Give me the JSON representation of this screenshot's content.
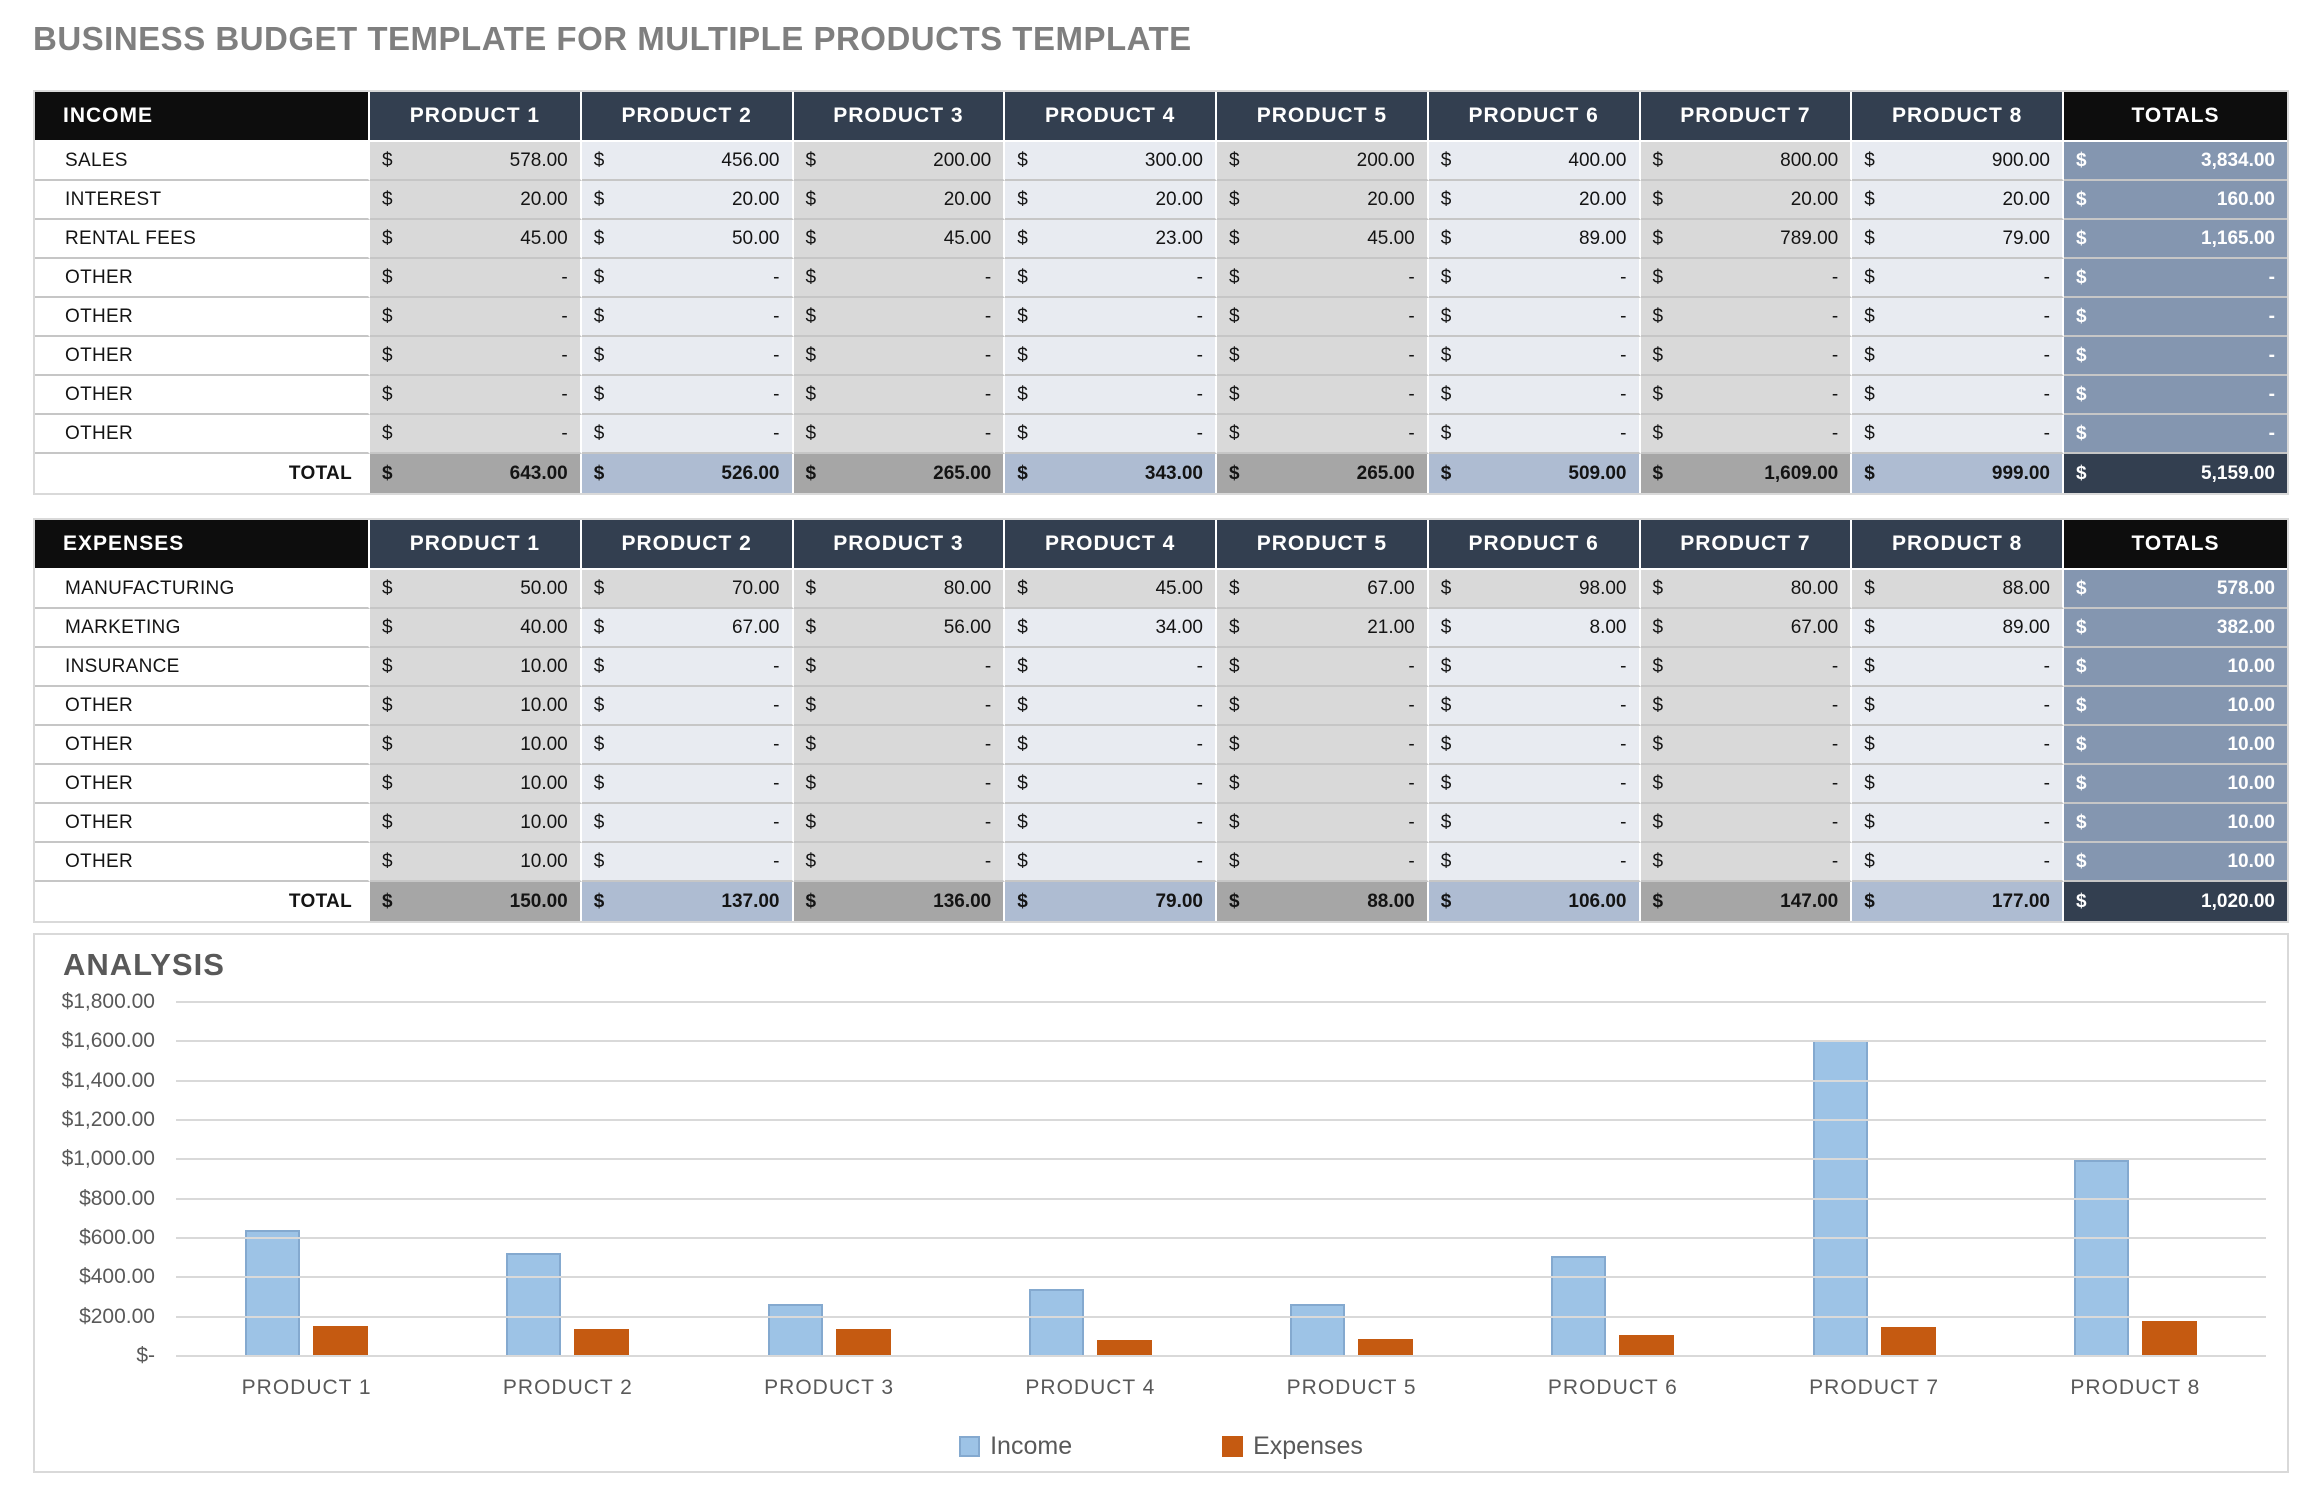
{
  "page_title": "BUSINESS BUDGET TEMPLATE FOR MULTIPLE PRODUCTS TEMPLATE",
  "currency_symbol": "$",
  "colors": {
    "title_gray": "#7f7f7f",
    "header_black": "#0d0d0d",
    "header_navy": "#333f50",
    "column_gray": "#d9d9d9",
    "column_blue": "#e8ebf1",
    "totals_column_blue": "#8496b0",
    "total_row_gray": "#a6a6a6",
    "total_row_blue": "#aebcd2",
    "grand_total_navy": "#333f50",
    "income_bar": "#9dc3e6",
    "expenses_bar": "#c55a11"
  },
  "income_table": {
    "label_header": "INCOME",
    "product_headers": [
      "PRODUCT 1",
      "PRODUCT 2",
      "PRODUCT 3",
      "PRODUCT 4",
      "PRODUCT 5",
      "PRODUCT 6",
      "PRODUCT 7",
      "PRODUCT 8"
    ],
    "totals_header": "TOTALS",
    "rows": [
      {
        "label": "SALES",
        "values": [
          "578.00",
          "456.00",
          "200.00",
          "300.00",
          "200.00",
          "400.00",
          "800.00",
          "900.00"
        ],
        "total": "3,834.00",
        "uniform_fill": false
      },
      {
        "label": "INTEREST",
        "values": [
          "20.00",
          "20.00",
          "20.00",
          "20.00",
          "20.00",
          "20.00",
          "20.00",
          "20.00"
        ],
        "total": "160.00",
        "uniform_fill": false
      },
      {
        "label": "RENTAL FEES",
        "values": [
          "45.00",
          "50.00",
          "45.00",
          "23.00",
          "45.00",
          "89.00",
          "789.00",
          "79.00"
        ],
        "total": "1,165.00",
        "uniform_fill": false
      },
      {
        "label": "OTHER",
        "values": [
          "-",
          "-",
          "-",
          "-",
          "-",
          "-",
          "-",
          "-"
        ],
        "total": "-",
        "uniform_fill": false
      },
      {
        "label": "OTHER",
        "values": [
          "-",
          "-",
          "-",
          "-",
          "-",
          "-",
          "-",
          "-"
        ],
        "total": "-",
        "uniform_fill": false
      },
      {
        "label": "OTHER",
        "values": [
          "-",
          "-",
          "-",
          "-",
          "-",
          "-",
          "-",
          "-"
        ],
        "total": "-",
        "uniform_fill": false
      },
      {
        "label": "OTHER",
        "values": [
          "-",
          "-",
          "-",
          "-",
          "-",
          "-",
          "-",
          "-"
        ],
        "total": "-",
        "uniform_fill": false
      },
      {
        "label": "OTHER",
        "values": [
          "-",
          "-",
          "-",
          "-",
          "-",
          "-",
          "-",
          "-"
        ],
        "total": "-",
        "uniform_fill": false
      }
    ],
    "total_row": {
      "label": "TOTAL",
      "values": [
        "643.00",
        "526.00",
        "265.00",
        "343.00",
        "265.00",
        "509.00",
        "1,609.00",
        "999.00"
      ],
      "total": "5,159.00"
    }
  },
  "expenses_table": {
    "label_header": "EXPENSES",
    "product_headers": [
      "PRODUCT 1",
      "PRODUCT 2",
      "PRODUCT 3",
      "PRODUCT 4",
      "PRODUCT 5",
      "PRODUCT 6",
      "PRODUCT 7",
      "PRODUCT 8"
    ],
    "totals_header": "TOTALS",
    "rows": [
      {
        "label": "MANUFACTURING",
        "values": [
          "50.00",
          "70.00",
          "80.00",
          "45.00",
          "67.00",
          "98.00",
          "80.00",
          "88.00"
        ],
        "total": "578.00",
        "uniform_fill": true
      },
      {
        "label": "MARKETING",
        "values": [
          "40.00",
          "67.00",
          "56.00",
          "34.00",
          "21.00",
          "8.00",
          "67.00",
          "89.00"
        ],
        "total": "382.00",
        "uniform_fill": false
      },
      {
        "label": "INSURANCE",
        "values": [
          "10.00",
          "-",
          "-",
          "-",
          "-",
          "-",
          "-",
          "-"
        ],
        "total": "10.00",
        "uniform_fill": false
      },
      {
        "label": "OTHER",
        "values": [
          "10.00",
          "-",
          "-",
          "-",
          "-",
          "-",
          "-",
          "-"
        ],
        "total": "10.00",
        "uniform_fill": false
      },
      {
        "label": "OTHER",
        "values": [
          "10.00",
          "-",
          "-",
          "-",
          "-",
          "-",
          "-",
          "-"
        ],
        "total": "10.00",
        "uniform_fill": false
      },
      {
        "label": "OTHER",
        "values": [
          "10.00",
          "-",
          "-",
          "-",
          "-",
          "-",
          "-",
          "-"
        ],
        "total": "10.00",
        "uniform_fill": false
      },
      {
        "label": "OTHER",
        "values": [
          "10.00",
          "-",
          "-",
          "-",
          "-",
          "-",
          "-",
          "-"
        ],
        "total": "10.00",
        "uniform_fill": false
      },
      {
        "label": "OTHER",
        "values": [
          "10.00",
          "-",
          "-",
          "-",
          "-",
          "-",
          "-",
          "-"
        ],
        "total": "10.00",
        "uniform_fill": false
      }
    ],
    "total_row": {
      "label": "TOTAL",
      "values": [
        "150.00",
        "137.00",
        "136.00",
        "79.00",
        "88.00",
        "106.00",
        "147.00",
        "177.00"
      ],
      "total": "1,020.00"
    }
  },
  "analysis": {
    "title": "ANALYSIS"
  },
  "chart_data": {
    "type": "bar",
    "title": "ANALYSIS",
    "categories": [
      "PRODUCT 1",
      "PRODUCT 2",
      "PRODUCT 3",
      "PRODUCT 4",
      "PRODUCT 5",
      "PRODUCT 6",
      "PRODUCT 7",
      "PRODUCT 8"
    ],
    "series": [
      {
        "name": "Income",
        "color": "#9dc3e6",
        "values": [
          643,
          526,
          265,
          343,
          265,
          509,
          1609,
          999
        ]
      },
      {
        "name": "Expenses",
        "color": "#c55a11",
        "values": [
          150,
          137,
          136,
          79,
          88,
          106,
          147,
          177
        ]
      }
    ],
    "xlabel": "",
    "ylabel": "",
    "ylim": [
      0,
      1800
    ],
    "ytick_step": 200,
    "ytick_labels": [
      "$1,800.00",
      "$1,600.00",
      "$1,400.00",
      "$1,200.00",
      "$1,000.00",
      "$800.00",
      "$600.00",
      "$400.00",
      "$200.00",
      "$-"
    ],
    "grid": true,
    "legend_position": "bottom"
  }
}
